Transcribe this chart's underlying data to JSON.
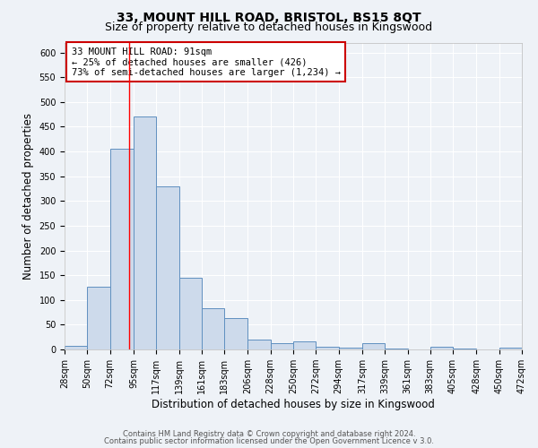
{
  "title": "33, MOUNT HILL ROAD, BRISTOL, BS15 8QT",
  "subtitle": "Size of property relative to detached houses in Kingswood",
  "xlabel": "Distribution of detached houses by size in Kingswood",
  "ylabel": "Number of detached properties",
  "bar_edges": [
    28,
    50,
    72,
    95,
    117,
    139,
    161,
    183,
    206,
    228,
    250,
    272,
    294,
    317,
    339,
    361,
    383,
    405,
    428,
    450,
    472
  ],
  "bar_heights": [
    8,
    126,
    405,
    470,
    330,
    145,
    84,
    64,
    20,
    13,
    16,
    6,
    3,
    13,
    2,
    0,
    5,
    1,
    0,
    3
  ],
  "bar_color": "#cddaeb",
  "bar_edge_color": "#6090c0",
  "bar_edge_width": 0.7,
  "redline_x": 91,
  "ylim": [
    0,
    620
  ],
  "yticks": [
    0,
    50,
    100,
    150,
    200,
    250,
    300,
    350,
    400,
    450,
    500,
    550,
    600
  ],
  "xtick_labels": [
    "28sqm",
    "50sqm",
    "72sqm",
    "95sqm",
    "117sqm",
    "139sqm",
    "161sqm",
    "183sqm",
    "206sqm",
    "228sqm",
    "250sqm",
    "272sqm",
    "294sqm",
    "317sqm",
    "339sqm",
    "361sqm",
    "383sqm",
    "405sqm",
    "428sqm",
    "450sqm",
    "472sqm"
  ],
  "annotation_title": "33 MOUNT HILL ROAD: 91sqm",
  "annotation_line1": "← 25% of detached houses are smaller (426)",
  "annotation_line2": "73% of semi-detached houses are larger (1,234) →",
  "annotation_box_facecolor": "#ffffff",
  "annotation_box_edgecolor": "#cc0000",
  "footer1": "Contains HM Land Registry data © Crown copyright and database right 2024.",
  "footer2": "Contains public sector information licensed under the Open Government Licence v 3.0.",
  "bg_color": "#eef2f7",
  "grid_color": "#ffffff",
  "title_fontsize": 10,
  "subtitle_fontsize": 9,
  "axis_label_fontsize": 8.5,
  "tick_fontsize": 7,
  "annotation_fontsize": 7.5,
  "footer_fontsize": 6
}
